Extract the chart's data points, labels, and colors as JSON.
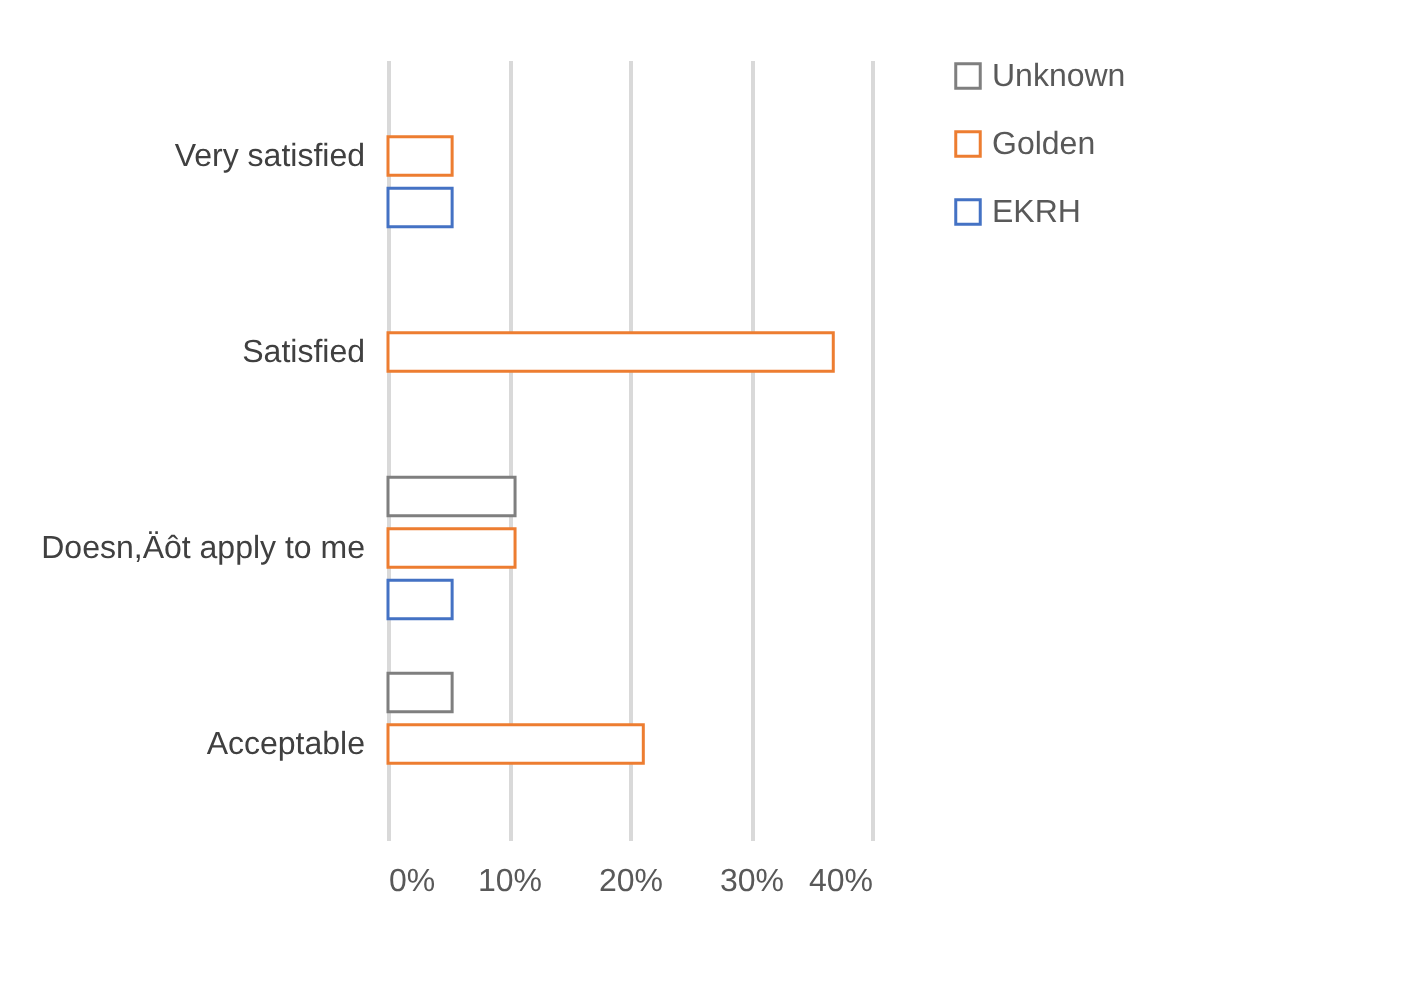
{
  "chart_data": {
    "type": "bar",
    "orientation": "horizontal",
    "categories": [
      "Very satisfied",
      "Satisfied",
      "Doesn,Äôt apply to me",
      "Acceptable"
    ],
    "series": [
      {
        "name": "Unknown",
        "color": "#7f7f7f",
        "values": [
          null,
          null,
          10.5,
          5.3
        ]
      },
      {
        "name": "Golden",
        "color": "#ed7d31",
        "values": [
          5.3,
          36.8,
          10.5,
          21.1
        ]
      },
      {
        "name": "EKRH",
        "color": "#4472c4",
        "values": [
          5.3,
          null,
          5.3,
          null
        ]
      }
    ],
    "xlim": [
      0,
      40
    ],
    "xticks": [
      {
        "value": 0,
        "label": "0%"
      },
      {
        "value": 10,
        "label": "10%"
      },
      {
        "value": 20,
        "label": "20%"
      },
      {
        "value": 30,
        "label": "30%"
      },
      {
        "value": 40,
        "label": "40%"
      }
    ],
    "grid": "x",
    "legend": "right"
  }
}
